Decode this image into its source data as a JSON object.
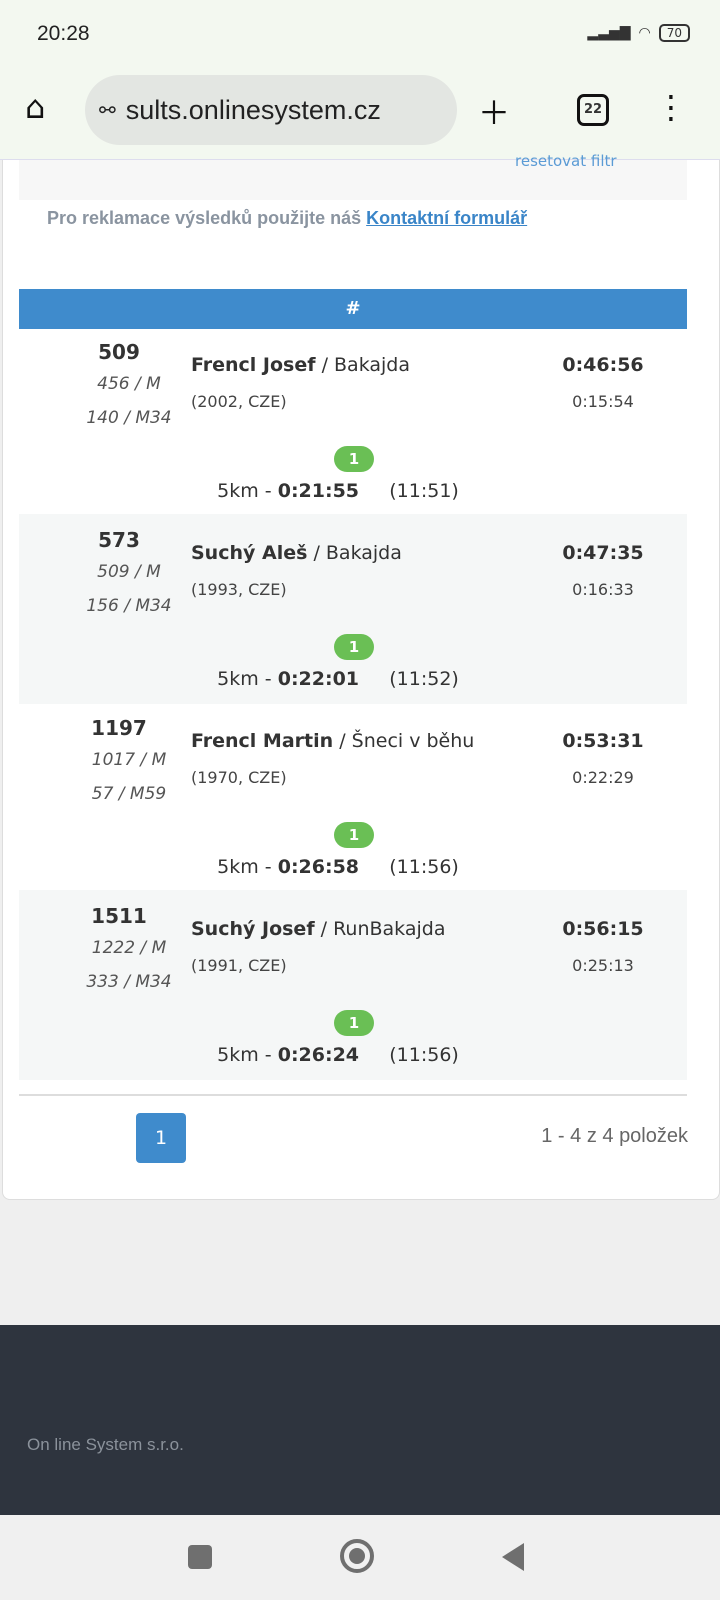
{
  "status": {
    "time": "20:28",
    "battery": "70"
  },
  "browser": {
    "url": "sults.onlinesystem.cz",
    "tab_count": "22"
  },
  "filter": {
    "reset_label": "resetovat filtr"
  },
  "note": {
    "text": "Pro reklamace výsledků použijte náš ",
    "link": "Kontaktní formulář"
  },
  "table": {
    "header": "#",
    "rows": [
      {
        "bib": "509",
        "cat1": "456 / M",
        "cat2": "140 / M34",
        "name": "Frencl Josef",
        "team": " / Bakajda",
        "info": "(2002, CZE)",
        "time": "0:46:56",
        "loss": "0:15:54",
        "badge": "1",
        "split_label": "5km - ",
        "split_time": "0:21:55",
        "split_pace": "(11:51)"
      },
      {
        "bib": "573",
        "cat1": "509 / M",
        "cat2": "156 / M34",
        "name": "Suchý Aleš",
        "team": " / Bakajda",
        "info": "(1993, CZE)",
        "time": "0:47:35",
        "loss": "0:16:33",
        "badge": "1",
        "split_label": "5km - ",
        "split_time": "0:22:01",
        "split_pace": "(11:52)"
      },
      {
        "bib": "1197",
        "cat1": "1017 / M",
        "cat2": "57 / M59",
        "name": "Frencl Martin",
        "team": " / Šneci v běhu",
        "info": "(1970, CZE)",
        "time": "0:53:31",
        "loss": "0:22:29",
        "badge": "1",
        "split_label": "5km - ",
        "split_time": "0:26:58",
        "split_pace": "(11:56)"
      },
      {
        "bib": "1511",
        "cat1": "1222 / M",
        "cat2": "333 / M34",
        "name": "Suchý Josef",
        "team": " / RunBakajda",
        "info": "(1991, CZE)",
        "time": "0:56:15",
        "loss": "0:25:13",
        "badge": "1",
        "split_label": "5km - ",
        "split_time": "0:26:24",
        "split_pace": "(11:56)"
      }
    ]
  },
  "pager": {
    "current": "1",
    "summary": "1 - 4 z 4 položek"
  },
  "footer": {
    "company": "On line System s.r.o."
  },
  "colors": {
    "accent": "#3f8bcc",
    "badge": "#6abf55",
    "footer": "#2e343e"
  }
}
